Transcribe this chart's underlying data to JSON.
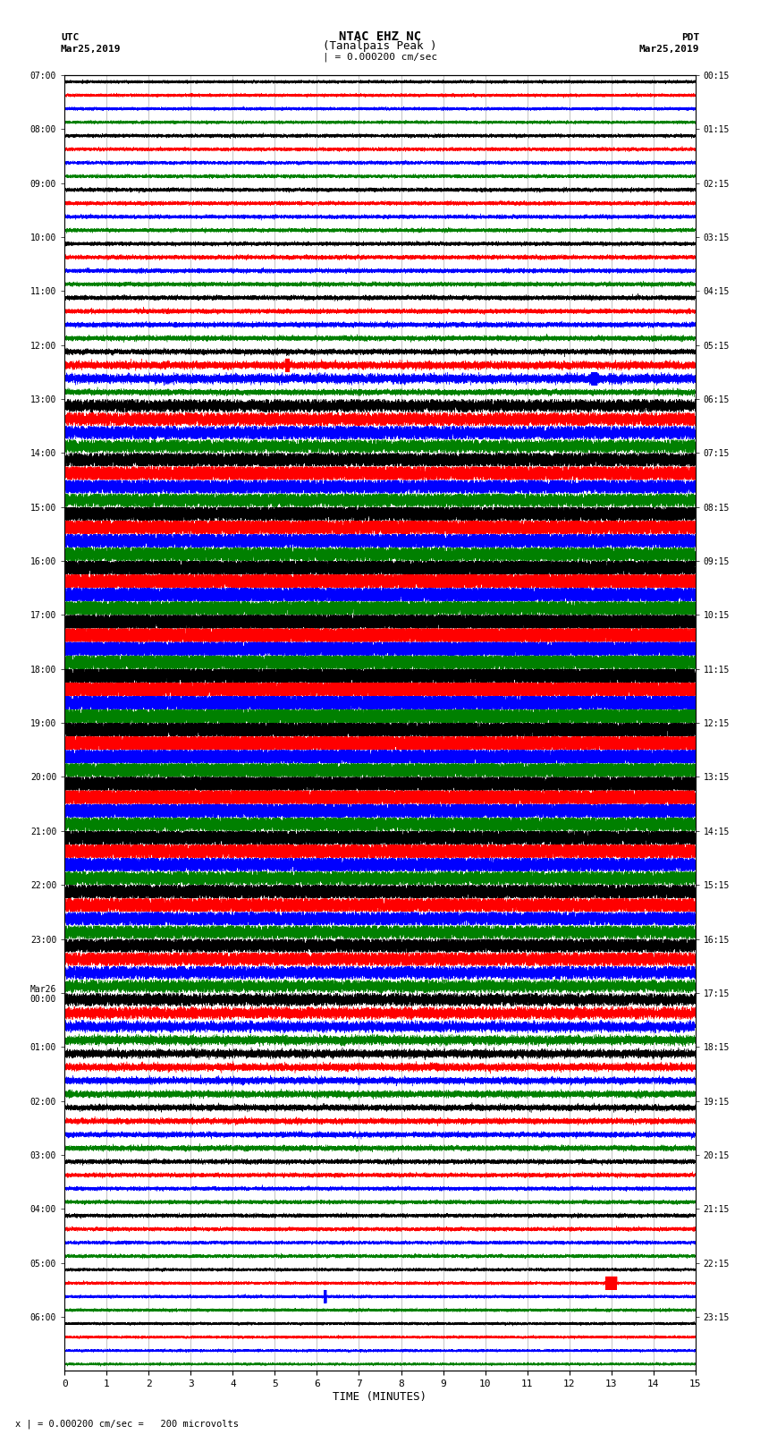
{
  "title_line1": "NTAC EHZ NC",
  "title_line2": "(Tanalpais Peak )",
  "title_line3": "| = 0.000200 cm/sec",
  "label_utc": "UTC",
  "label_pdt": "PDT",
  "label_date_left": "Mar25,2019",
  "label_date_right": "Mar25,2019",
  "xlabel": "TIME (MINUTES)",
  "footer": "x | = 0.000200 cm/sec =   200 microvolts",
  "n_rows": 96,
  "n_minutes": 15,
  "sample_rate": 50,
  "row_colors_cycle": [
    "black",
    "red",
    "blue",
    "green"
  ],
  "grid_color": "#999999",
  "bg_color": "white",
  "fig_width": 8.5,
  "fig_height": 16.13,
  "dpi": 100,
  "utc_labels": [
    "07:00",
    "08:00",
    "09:00",
    "10:00",
    "11:00",
    "12:00",
    "13:00",
    "14:00",
    "15:00",
    "16:00",
    "17:00",
    "18:00",
    "19:00",
    "20:00",
    "21:00",
    "22:00",
    "23:00",
    "Mar26\n00:00",
    "01:00",
    "02:00",
    "03:00",
    "04:00",
    "05:00",
    "06:00"
  ],
  "pdt_labels": [
    "00:15",
    "01:15",
    "02:15",
    "03:15",
    "04:15",
    "05:15",
    "06:15",
    "07:15",
    "08:15",
    "09:15",
    "10:15",
    "11:15",
    "12:15",
    "13:15",
    "14:15",
    "15:15",
    "16:15",
    "17:15",
    "18:15",
    "19:15",
    "20:15",
    "21:15",
    "22:15",
    "23:15"
  ],
  "noise_profile": [
    0.08,
    0.08,
    0.08,
    0.08,
    0.09,
    0.09,
    0.09,
    0.09,
    0.1,
    0.1,
    0.1,
    0.1,
    0.1,
    0.11,
    0.11,
    0.11,
    0.12,
    0.12,
    0.13,
    0.13,
    0.14,
    0.2,
    0.25,
    0.15,
    0.35,
    0.38,
    0.4,
    0.38,
    0.45,
    0.48,
    0.45,
    0.42,
    0.55,
    0.52,
    0.5,
    0.48,
    0.6,
    0.58,
    0.55,
    0.55,
    0.65,
    0.62,
    0.6,
    0.58,
    0.68,
    0.65,
    0.62,
    0.6,
    0.65,
    0.62,
    0.58,
    0.55,
    0.62,
    0.6,
    0.55,
    0.5,
    0.55,
    0.52,
    0.48,
    0.45,
    0.5,
    0.48,
    0.45,
    0.42,
    0.45,
    0.42,
    0.38,
    0.35,
    0.35,
    0.32,
    0.28,
    0.25,
    0.22,
    0.2,
    0.18,
    0.18,
    0.16,
    0.15,
    0.14,
    0.14,
    0.12,
    0.11,
    0.1,
    0.1,
    0.1,
    0.1,
    0.09,
    0.09,
    0.08,
    0.08,
    0.08,
    0.08,
    0.07,
    0.07,
    0.07,
    0.07
  ]
}
